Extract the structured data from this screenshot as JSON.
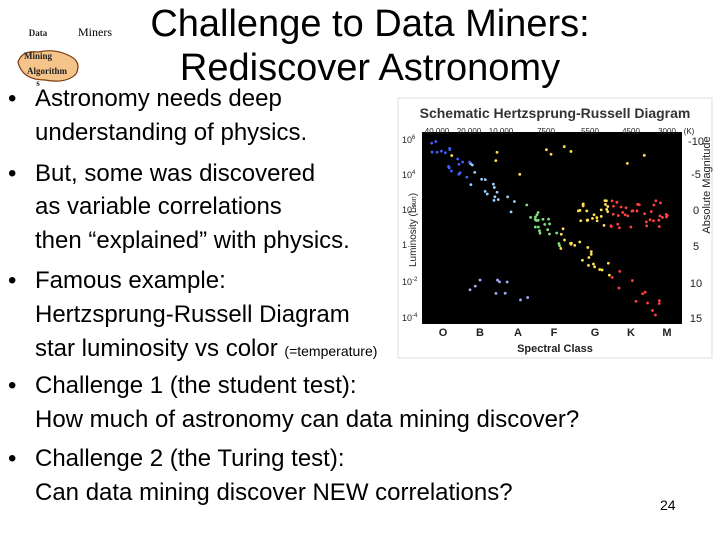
{
  "logo": {
    "lines": [
      "Data",
      "Mining",
      "Algorithm",
      "s"
    ],
    "label": "Miners"
  },
  "title": [
    "Challenge to Data Miners:",
    "Rediscover Astronomy"
  ],
  "bullets": [
    {
      "lines": [
        "Astronomy needs deep",
        "understanding of physics."
      ]
    },
    {
      "lines": [
        "But, some was discovered",
        "as variable correlations",
        "then “explained” with physics."
      ]
    },
    {
      "lines": [
        "Famous example:",
        "Hertzsprung-Russell Diagram",
        "star luminosity vs color "
      ],
      "small": "(=temperature)"
    },
    {
      "lines": [
        "Challenge 1 (the student test):",
        "How much of astronomy can data mining discover?"
      ]
    },
    {
      "lines": [
        "Challenge 2 (the Turing test):",
        "Can data mining discover NEW correlations?"
      ]
    }
  ],
  "page_number": "24",
  "hr_diagram": {
    "title": "Schematic Hertzsprung-Russell Diagram",
    "temperatures": [
      "40,000",
      "20,000",
      "10,000",
      "7500",
      "5500",
      "4500",
      "3000",
      "(K)"
    ],
    "luminosity_ticks": [
      {
        "base": "10",
        "exp": "6"
      },
      {
        "base": "10",
        "exp": "4"
      },
      {
        "base": "10",
        "exp": "2"
      },
      {
        "base": "1",
        "exp": ""
      },
      {
        "base": "10",
        "exp": "-2"
      },
      {
        "base": "10",
        "exp": "-4"
      }
    ],
    "magnitude_ticks": [
      "-10",
      "-5",
      "0",
      "5",
      "10",
      "15"
    ],
    "y_label": "Luminosity (L",
    "y_label_sub": "sun",
    "y2_label": "Absolute Magnitude",
    "spectral_classes": [
      "O",
      "B",
      "A",
      "F",
      "G",
      "K",
      "M"
    ],
    "x_label": "Spectral Class"
  }
}
